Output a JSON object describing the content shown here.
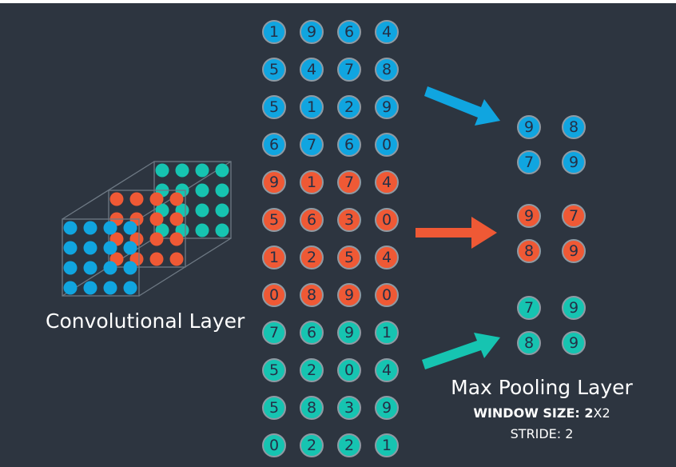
{
  "colors": {
    "background": "#2d3540",
    "blue": "#10a5e0",
    "red": "#ef5935",
    "teal": "#16c4b1",
    "cell_border": "#8f9aa3",
    "cell_text": "#243047",
    "cube_lines": "#6e7984"
  },
  "matrix": {
    "rows": [
      {
        "color": "blue",
        "values": [
          "1",
          "9",
          "6",
          "4"
        ]
      },
      {
        "color": "blue",
        "values": [
          "5",
          "4",
          "7",
          "8"
        ]
      },
      {
        "color": "blue",
        "values": [
          "5",
          "1",
          "2",
          "9"
        ]
      },
      {
        "color": "blue",
        "values": [
          "6",
          "7",
          "6",
          "0"
        ]
      },
      {
        "color": "red",
        "values": [
          "9",
          "1",
          "7",
          "4"
        ]
      },
      {
        "color": "red",
        "values": [
          "5",
          "6",
          "3",
          "0"
        ]
      },
      {
        "color": "red",
        "values": [
          "1",
          "2",
          "5",
          "4"
        ]
      },
      {
        "color": "red",
        "values": [
          "0",
          "8",
          "9",
          "0"
        ]
      },
      {
        "color": "teal",
        "values": [
          "7",
          "6",
          "9",
          "1"
        ]
      },
      {
        "color": "teal",
        "values": [
          "5",
          "2",
          "0",
          "4"
        ]
      },
      {
        "color": "teal",
        "values": [
          "5",
          "8",
          "3",
          "9"
        ]
      },
      {
        "color": "teal",
        "values": [
          "0",
          "2",
          "2",
          "1"
        ]
      }
    ]
  },
  "pooled": [
    {
      "color": "blue",
      "values": [
        "9",
        "8",
        "7",
        "9"
      ]
    },
    {
      "color": "red",
      "values": [
        "9",
        "7",
        "8",
        "9"
      ]
    },
    {
      "color": "teal",
      "values": [
        "7",
        "9",
        "8",
        "9"
      ]
    }
  ],
  "labels": {
    "convolutional": "Convolutional Layer",
    "max_pooling": "Max Pooling Layer",
    "window_key": "WINDOW SIZE: ",
    "window_num": "2",
    "window_rest": "X2",
    "stride": "STRIDE: 2"
  }
}
